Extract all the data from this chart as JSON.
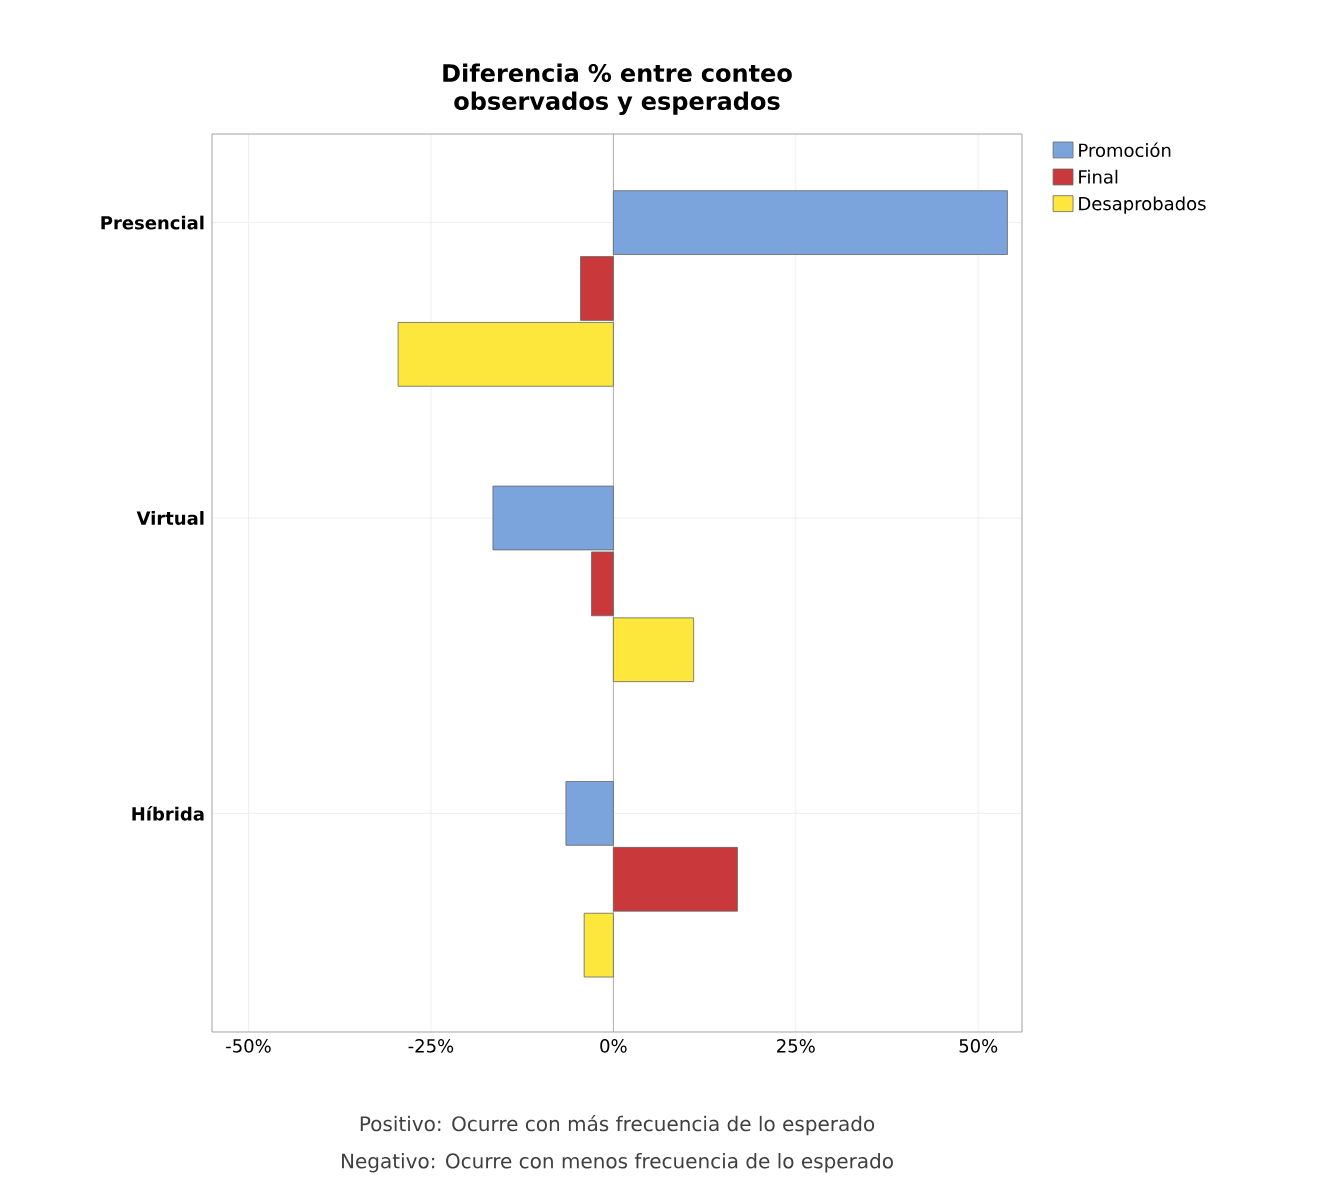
{
  "chart_data": {
    "type": "bar",
    "orientation": "horizontal",
    "title": "Diferencia % entre conteo observados y esperados",
    "categories": [
      "Presencial",
      "Virtual",
      "Híbrida"
    ],
    "series": [
      {
        "name": "Promoción",
        "color": "#7ba3dc",
        "values": [
          54,
          -16.5,
          -6.5
        ]
      },
      {
        "name": "Final",
        "color": "#c9393b",
        "values": [
          -4.5,
          -3,
          17
        ]
      },
      {
        "name": "Desaprobados",
        "color": "#fde73d",
        "values": [
          -29.5,
          11,
          -4
        ]
      }
    ],
    "xlim": [
      -55,
      56
    ],
    "xticks": [
      {
        "value": -50,
        "label": "-50%"
      },
      {
        "value": -25,
        "label": "-25%"
      },
      {
        "value": 0,
        "label": "0%"
      },
      {
        "value": 25,
        "label": "25%"
      },
      {
        "value": 50,
        "label": "50%"
      }
    ],
    "grid": true,
    "legend": "right",
    "ref_lines": [
      {
        "axis": "x",
        "value": 0,
        "color": "#9a9a9a"
      }
    ],
    "annotations": [
      "Positivo: Ocurre con más frecuencia de lo esperado",
      "Negativo: Ocurre con menos frecuencia de lo esperado"
    ]
  }
}
